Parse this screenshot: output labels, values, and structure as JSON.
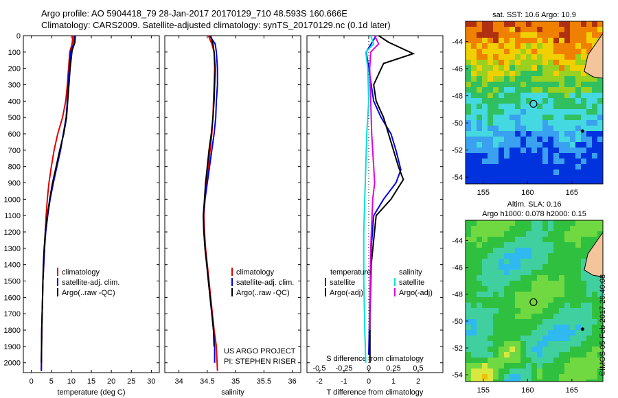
{
  "header": {
    "line1": "Argo profile: AO 5904418_79 28-Jan-2017 20170129_710 48.593S 160.666E",
    "line2": "Climatology: CARS2009. Satellite-adjusted climatology: synTS_20170129.nc (0.1d later)"
  },
  "stamp": "©IMOS 05-Feb-2017 20:40:08",
  "depth_ticks": [
    "0",
    "100",
    "200",
    "300",
    "400",
    "500",
    "600",
    "700",
    "800",
    "900",
    "1000",
    "1100",
    "1200",
    "1300",
    "1400",
    "1500",
    "1600",
    "1700",
    "1800",
    "1900",
    "2000"
  ],
  "colors": {
    "climatology": "#e00000",
    "satellite": "#0000e0",
    "argo": "#000000",
    "sal_satellite": "#00e0e0",
    "sal_argo": "#e000e0"
  },
  "chart_data": [
    {
      "type": "line",
      "panel": "temperature",
      "xlabel": "temperature (deg C)",
      "ylabel": "",
      "xticks": [
        "0",
        "5",
        "10",
        "15",
        "20",
        "25",
        "30"
      ],
      "xlim": [
        -2,
        32
      ],
      "ylim": [
        2060,
        0
      ],
      "legend_position": "center-left",
      "legend": [
        "climatology",
        "satellite-adj. clim.",
        "Argo(..raw -QC)"
      ],
      "series": [
        {
          "name": "climatology",
          "color": "#e00000",
          "x": [
            10.4,
            10.2,
            9.6,
            9.3,
            9.0,
            8.6,
            7.8,
            6.6,
            5.7,
            5.0,
            4.4,
            4.0,
            3.7,
            3.5,
            3.3,
            3.1,
            2.9,
            2.8,
            2.7,
            2.6,
            2.5
          ],
          "y": [
            0,
            50,
            100,
            200,
            300,
            400,
            500,
            600,
            700,
            800,
            900,
            1000,
            1100,
            1200,
            1300,
            1400,
            1500,
            1600,
            1700,
            1800,
            2050
          ]
        },
        {
          "name": "satellite-adj. clim.",
          "color": "#0000e0",
          "x": [
            10.8,
            10.6,
            9.8,
            9.5,
            9.2,
            9.0,
            8.7,
            8.0,
            7.3,
            6.4,
            5.5,
            4.7,
            4.1,
            3.6,
            3.3,
            3.1,
            2.9,
            2.8,
            2.7,
            2.6,
            2.5
          ],
          "y": [
            0,
            50,
            100,
            200,
            300,
            400,
            500,
            600,
            700,
            800,
            900,
            1000,
            1100,
            1200,
            1300,
            1400,
            1500,
            1600,
            1700,
            1800,
            2050
          ]
        },
        {
          "name": "Argo(..raw -QC)",
          "color": "#000000",
          "x": [
            11.0,
            10.9,
            10.2,
            9.7,
            9.4,
            9.1,
            8.8,
            8.1,
            7.1,
            6.2,
            5.3,
            4.6,
            4.0,
            3.5,
            3.2,
            3.0,
            2.9,
            2.8,
            2.7,
            2.6,
            2.5
          ],
          "y": [
            0,
            40,
            90,
            200,
            300,
            400,
            500,
            600,
            700,
            800,
            900,
            1000,
            1100,
            1200,
            1300,
            1400,
            1500,
            1600,
            1700,
            1800,
            2000
          ]
        }
      ]
    },
    {
      "type": "line",
      "panel": "salinity",
      "xlabel": "salinity",
      "ylabel": "",
      "xticks": [
        "34",
        "34.5",
        "35",
        "35.5",
        "36"
      ],
      "xlim": [
        33.75,
        36.15
      ],
      "ylim": [
        2060,
        0
      ],
      "legend_position": "center-right",
      "legend": [
        "climatology",
        "satellite-adj. clim.",
        "Argo(..raw -QC)"
      ],
      "annotation": [
        "US ARGO PROJECT",
        "PI: STEPHEN RISER"
      ],
      "series": [
        {
          "name": "climatology",
          "color": "#e00000",
          "x": [
            34.52,
            34.58,
            34.62,
            34.63,
            34.62,
            34.61,
            34.6,
            34.58,
            34.55,
            34.52,
            34.49,
            34.46,
            34.44,
            34.45,
            34.47,
            34.5,
            34.53,
            34.56,
            34.59,
            34.62,
            34.66,
            34.68
          ],
          "y": [
            0,
            50,
            100,
            200,
            300,
            400,
            500,
            600,
            700,
            800,
            900,
            1000,
            1100,
            1200,
            1300,
            1400,
            1500,
            1600,
            1700,
            1800,
            1900,
            2050
          ]
        },
        {
          "name": "satellite-adj. clim.",
          "color": "#0000e0",
          "x": [
            34.54,
            34.64,
            34.66,
            34.68,
            34.68,
            34.66,
            34.65,
            34.62,
            34.58,
            34.54,
            34.5,
            34.46,
            34.43,
            34.44,
            34.46,
            34.49,
            34.52,
            34.55,
            34.58,
            34.61,
            34.63,
            34.63
          ],
          "y": [
            0,
            50,
            100,
            200,
            300,
            400,
            500,
            600,
            700,
            800,
            900,
            1000,
            1100,
            1200,
            1300,
            1400,
            1500,
            1600,
            1700,
            1800,
            1900,
            2000
          ]
        },
        {
          "name": "Argo(..raw -QC)",
          "color": "#000000",
          "x": [
            34.56,
            34.6,
            34.62,
            34.64,
            34.63,
            34.62,
            34.6,
            34.57,
            34.53,
            34.5,
            34.47,
            34.45,
            34.43,
            34.44,
            34.46,
            34.49,
            34.52,
            34.55,
            34.58,
            34.61,
            34.62
          ],
          "y": [
            0,
            50,
            100,
            200,
            300,
            400,
            500,
            600,
            700,
            800,
            900,
            1000,
            1100,
            1200,
            1300,
            1400,
            1500,
            1600,
            1700,
            1800,
            1900
          ]
        }
      ]
    },
    {
      "type": "line",
      "panel": "difference",
      "xlabel": "T difference from climatology",
      "ylabel": "",
      "top_label": "S difference from climatology",
      "xticks": [
        "-2",
        "-1",
        "0",
        "1",
        "2"
      ],
      "sticks": [
        "-0.5",
        "-0.25",
        "0",
        "0.25",
        "0.5"
      ],
      "xlim": [
        -2.5,
        3.0
      ],
      "ylim": [
        2060,
        0
      ],
      "legend_position": "center",
      "legend_headers": [
        "temperature",
        "salinity"
      ],
      "legend": [
        "satellite",
        "Argo(-adj)",
        "satellite",
        "Argo(-adj)"
      ],
      "series": [
        {
          "name": "satellite",
          "quantity": "temperature",
          "color": "#0000e0",
          "x": [
            0.3,
            0.1,
            -0.1,
            0.1,
            0.2,
            0.5,
            0.9,
            1.1,
            1.3,
            1.1,
            0.6,
            0.2,
            0.1,
            0.05,
            0.0
          ],
          "y": [
            0,
            50,
            100,
            300,
            400,
            500,
            600,
            700,
            820,
            900,
            1000,
            1100,
            1300,
            1600,
            1950
          ]
        },
        {
          "name": "Argo(-adj)",
          "quantity": "temperature",
          "color": "#000000",
          "x": [
            0.4,
            0.8,
            1.8,
            0.6,
            0.2,
            0.3,
            0.6,
            0.9,
            1.2,
            1.4,
            0.9,
            0.3,
            0.1,
            0.05,
            0.05
          ],
          "y": [
            0,
            40,
            110,
            170,
            300,
            400,
            500,
            650,
            800,
            880,
            1000,
            1100,
            1400,
            1700,
            2000
          ]
        },
        {
          "name": "satellite",
          "quantity": "salinity",
          "color": "#00e0e0",
          "x": [
            0.02,
            0.05,
            -0.03,
            -0.01,
            0.0,
            -0.02,
            -0.03,
            -0.04,
            -0.05,
            -0.05,
            -0.04,
            -0.03
          ],
          "y": [
            0,
            50,
            100,
            200,
            400,
            600,
            800,
            1000,
            1200,
            1500,
            1800,
            2000
          ]
        },
        {
          "name": "Argo(-adj)",
          "quantity": "salinity",
          "color": "#e000e0",
          "x": [
            0.06,
            0.1,
            0.02,
            0.01,
            0.02,
            0.03,
            0.05,
            0.06,
            0.04,
            0.02,
            0.01
          ],
          "y": [
            0,
            50,
            100,
            200,
            400,
            600,
            800,
            900,
            1000,
            1300,
            1800
          ]
        }
      ]
    },
    {
      "type": "heatmap",
      "panel": "sst-map",
      "title": "sat. SST: 10.6 Argo: 10.9",
      "xticks": [
        "155",
        "160",
        "165"
      ],
      "yticks": [
        "-44",
        "-46",
        "-48",
        "-50",
        "-52",
        "-54"
      ],
      "xlim": [
        153,
        168.5
      ],
      "ylim": [
        -54.5,
        -42.5
      ],
      "float_position": {
        "lon": 160.666,
        "lat": -48.593
      }
    },
    {
      "type": "heatmap",
      "panel": "sla-map",
      "title": "Altim. SLA: 0.16",
      "subtitle": "Argo h1000: 0.078 h2000: 0.15",
      "xticks": [
        "155",
        "160",
        "165"
      ],
      "yticks": [
        "-44",
        "-46",
        "-48",
        "-50",
        "-52",
        "-54"
      ],
      "xlim": [
        153,
        168.5
      ],
      "ylim": [
        -54.5,
        -42.5
      ],
      "float_position": {
        "lon": 160.666,
        "lat": -48.593
      }
    }
  ]
}
